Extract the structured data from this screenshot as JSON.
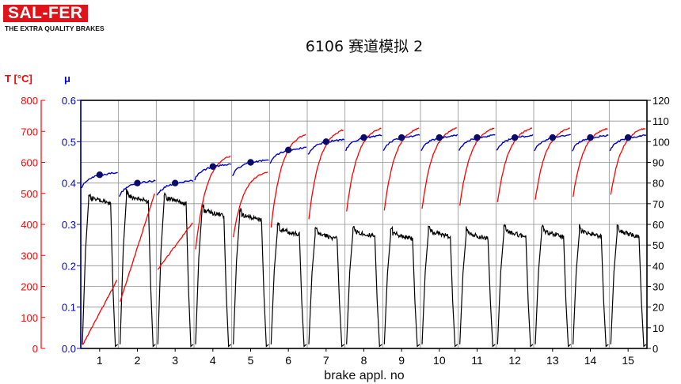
{
  "logo": {
    "brand": "SAL-FER",
    "tagline": "THE EXTRA QUALITY BRAKES",
    "color": "#e0121a"
  },
  "chart_data": {
    "type": "line",
    "title": "6106 赛道模拟 2",
    "xlabel": "brake appl. no",
    "left_axis_temp": {
      "label": "T [°C]",
      "range": [
        0,
        800
      ],
      "ticks": [
        0,
        100,
        200,
        300,
        400,
        500,
        600,
        700,
        800
      ],
      "color": "#ff0000"
    },
    "left_axis_mu": {
      "label": "μ",
      "range": [
        0.0,
        0.6
      ],
      "ticks": [
        "0.0",
        "0.1",
        "0.2",
        "0.3",
        "0.4",
        "0.5",
        "0.6"
      ],
      "color": "#0000cc"
    },
    "right_axis": {
      "range": [
        0,
        120
      ],
      "ticks": [
        0,
        10,
        20,
        30,
        40,
        50,
        60,
        70,
        80,
        90,
        100,
        110,
        120
      ],
      "color": "#000000"
    },
    "x_ticks": [
      1,
      2,
      3,
      4,
      5,
      6,
      7,
      8,
      9,
      10,
      11,
      12,
      13,
      14,
      15
    ],
    "grid": true,
    "series": [
      {
        "key": "temperature",
        "color": "#ff0000",
        "start_temp": [
          10,
          150,
          255,
          320,
          360,
          390,
          415,
          440,
          445,
          450,
          460,
          470,
          480,
          490,
          495
        ],
        "end_temp": [
          220,
          500,
          405,
          620,
          570,
          690,
          705,
          710,
          710,
          710,
          710,
          710,
          710,
          710,
          710
        ]
      },
      {
        "key": "mu",
        "color": "#0000cc",
        "mean_mu": [
          0.42,
          0.4,
          0.4,
          0.44,
          0.45,
          0.48,
          0.5,
          0.51,
          0.51,
          0.51,
          0.51,
          0.51,
          0.51,
          0.51,
          0.51
        ]
      },
      {
        "key": "right_axis_signal",
        "color": "#000000",
        "plateau": [
          73,
          74,
          73,
          67,
          65,
          58,
          56,
          57,
          56,
          57,
          56,
          57,
          57,
          57,
          57
        ]
      }
    ]
  }
}
